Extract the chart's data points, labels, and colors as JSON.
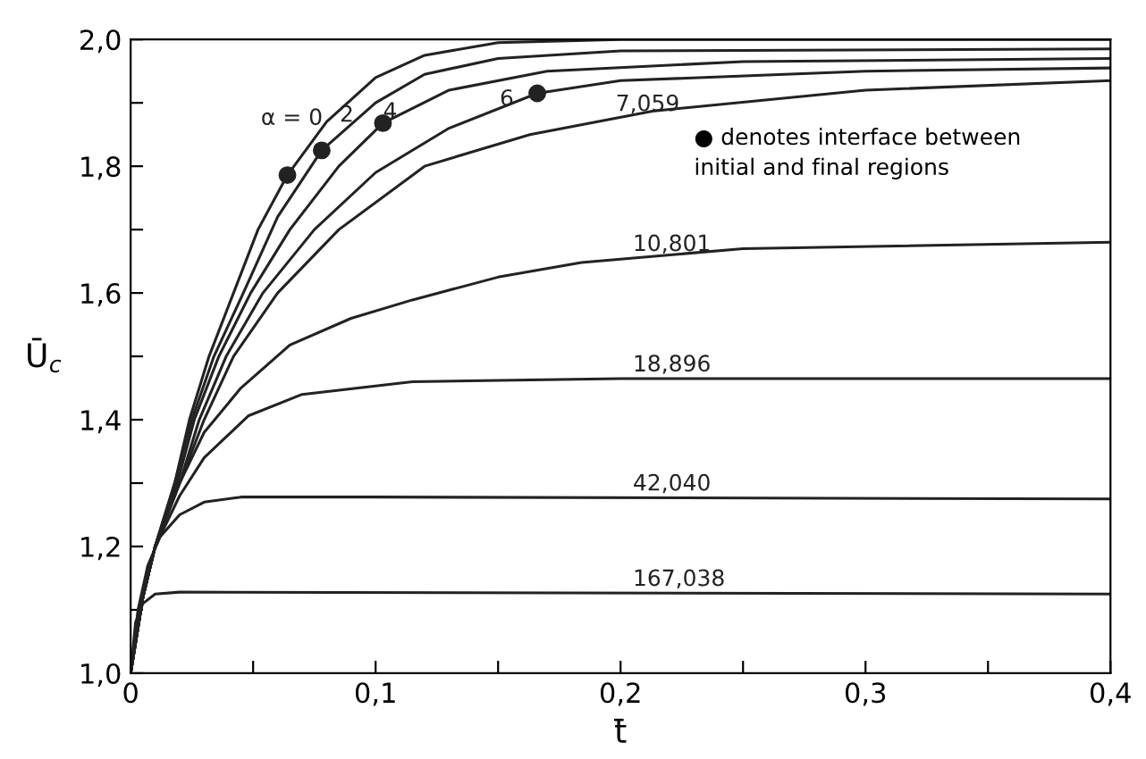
{
  "chart_data": {
    "type": "line",
    "xlabel": "t̄",
    "ylabel": "Ū$_{c}$",
    "xlim": [
      0,
      0.4
    ],
    "ylim": [
      1.0,
      2.0
    ],
    "xticks": [
      {
        "value": 0,
        "label": "0"
      },
      {
        "value": 0.05,
        "label": null
      },
      {
        "value": 0.1,
        "label": "0,1"
      },
      {
        "value": 0.15,
        "label": null
      },
      {
        "value": 0.2,
        "label": "0,2"
      },
      {
        "value": 0.25,
        "label": null
      },
      {
        "value": 0.3,
        "label": "0,3"
      },
      {
        "value": 0.35,
        "label": null
      },
      {
        "value": 0.4,
        "label": "0,4"
      }
    ],
    "yticks": [
      {
        "value": 1.0,
        "label": "1,0"
      },
      {
        "value": 1.1,
        "label": null
      },
      {
        "value": 1.2,
        "label": "1,2"
      },
      {
        "value": 1.3,
        "label": null
      },
      {
        "value": 1.4,
        "label": "1,4"
      },
      {
        "value": 1.5,
        "label": null
      },
      {
        "value": 1.6,
        "label": "1,6"
      },
      {
        "value": 1.7,
        "label": null
      },
      {
        "value": 1.8,
        "label": "1,8"
      },
      {
        "value": 1.9,
        "label": null
      },
      {
        "value": 2.0,
        "label": "2,0"
      }
    ],
    "grid": false,
    "legend": false,
    "marker": "none",
    "line_style": "solid",
    "annotations": [
      "● denotes interface between\ninitial and final regions"
    ],
    "series": [
      {
        "name": "α = 0",
        "color": "#222222",
        "x": [
          0,
          0.005,
          0.01,
          0.018,
          0.024,
          0.032,
          0.042,
          0.052,
          0.064,
          0.08,
          0.1,
          0.12,
          0.15,
          0.2,
          0.4
        ],
        "values": [
          1.0,
          1.12,
          1.2,
          1.3,
          1.4,
          1.5,
          1.6,
          1.7,
          1.786,
          1.87,
          1.94,
          1.975,
          1.995,
          2.0,
          2.0
        ]
      },
      {
        "name": "2",
        "color": "#222222",
        "x": [
          0,
          0.005,
          0.01,
          0.018,
          0.025,
          0.034,
          0.046,
          0.06,
          0.078,
          0.1,
          0.12,
          0.15,
          0.2,
          0.4
        ],
        "values": [
          1.0,
          1.12,
          1.2,
          1.3,
          1.4,
          1.5,
          1.6,
          1.72,
          1.825,
          1.9,
          1.945,
          1.97,
          1.982,
          1.985
        ]
      },
      {
        "name": "4",
        "color": "#222222",
        "x": [
          0,
          0.005,
          0.01,
          0.019,
          0.026,
          0.036,
          0.049,
          0.065,
          0.085,
          0.103,
          0.13,
          0.17,
          0.25,
          0.4
        ],
        "values": [
          1.0,
          1.12,
          1.2,
          1.3,
          1.4,
          1.5,
          1.6,
          1.7,
          1.8,
          1.868,
          1.92,
          1.95,
          1.965,
          1.97
        ]
      },
      {
        "name": "6",
        "color": "#222222",
        "x": [
          0,
          0.005,
          0.01,
          0.02,
          0.028,
          0.039,
          0.054,
          0.075,
          0.1,
          0.13,
          0.166,
          0.2,
          0.3,
          0.4
        ],
        "values": [
          1.0,
          1.12,
          1.2,
          1.3,
          1.4,
          1.5,
          1.6,
          1.7,
          1.79,
          1.86,
          1.915,
          1.935,
          1.95,
          1.955
        ]
      },
      {
        "name": "7,059",
        "color": "#222222",
        "x": [
          0,
          0.005,
          0.01,
          0.02,
          0.03,
          0.042,
          0.06,
          0.085,
          0.12,
          0.163,
          0.213,
          0.3,
          0.4
        ],
        "values": [
          1.0,
          1.12,
          1.2,
          1.3,
          1.4,
          1.5,
          1.6,
          1.7,
          1.8,
          1.85,
          1.887,
          1.92,
          1.935
        ]
      },
      {
        "name": "10,801",
        "color": "#222222",
        "x": [
          0,
          0.005,
          0.01,
          0.02,
          0.03,
          0.045,
          0.065,
          0.09,
          0.115,
          0.15,
          0.184,
          0.25,
          0.4
        ],
        "values": [
          1.0,
          1.12,
          1.2,
          1.3,
          1.38,
          1.45,
          1.518,
          1.56,
          1.589,
          1.625,
          1.648,
          1.67,
          1.68
        ]
      },
      {
        "name": "18,896",
        "color": "#222222",
        "x": [
          0,
          0.005,
          0.01,
          0.02,
          0.03,
          0.048,
          0.07,
          0.115,
          0.2,
          0.4
        ],
        "values": [
          1.0,
          1.12,
          1.2,
          1.28,
          1.34,
          1.406,
          1.44,
          1.46,
          1.465,
          1.465
        ]
      },
      {
        "name": "42,040",
        "color": "#222222",
        "x": [
          0,
          0.003,
          0.007,
          0.012,
          0.02,
          0.03,
          0.045,
          0.1,
          0.4
        ],
        "values": [
          1.0,
          1.1,
          1.17,
          1.215,
          1.25,
          1.27,
          1.278,
          1.278,
          1.275
        ]
      },
      {
        "name": "167,038",
        "color": "#222222",
        "x": [
          0,
          0.002,
          0.005,
          0.01,
          0.02,
          0.4
        ],
        "values": [
          1.0,
          1.08,
          1.11,
          1.125,
          1.128,
          1.125
        ]
      },
      {
        "type": "scatter",
        "marker": "circle",
        "color": "#222222",
        "x": [
          0.064,
          0.078,
          0.103,
          0.166
        ],
        "values": [
          1.786,
          1.825,
          1.868,
          1.915
        ]
      }
    ]
  }
}
